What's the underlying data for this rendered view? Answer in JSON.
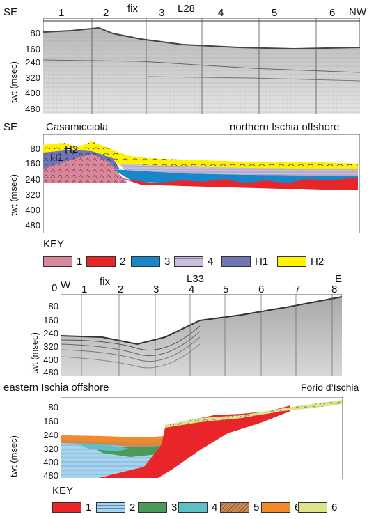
{
  "panel1": {
    "left_dir": "SE",
    "right_dir": "NW",
    "line_name": "L28",
    "fix_label": "fix",
    "fixes": [
      "1",
      "2",
      "3",
      "4",
      "5",
      "6"
    ],
    "ylabel": "twt (msec)",
    "yticks": [
      "80",
      "160",
      "240",
      "320",
      "400",
      "480"
    ]
  },
  "panel2": {
    "left_dir": "SE",
    "left_place": "Casamicciola",
    "right_place": "northern Ischia offshore",
    "ylabel": "twt (msec)",
    "yticks": [
      "80",
      "160",
      "240",
      "320",
      "400",
      "480"
    ],
    "unit_labels": [
      "H1",
      "H2"
    ]
  },
  "key1": {
    "title": "KEY",
    "items": [
      {
        "label": "1",
        "color": "#d9889c"
      },
      {
        "label": "2",
        "color": "#e8262a"
      },
      {
        "label": "3",
        "color": "#1787c9"
      },
      {
        "label": "4",
        "color": "#c9bedc"
      },
      {
        "label": "H1",
        "color": "#7276b4"
      },
      {
        "label": "H2",
        "color": "#fff200"
      }
    ]
  },
  "panel3": {
    "zero_label": "0",
    "left_dir": "W",
    "right_dir": "E",
    "line_name": "L33",
    "fix_label": "fix",
    "fixes": [
      "1",
      "2",
      "3",
      "4",
      "5",
      "6",
      "7",
      "8"
    ],
    "ylabel": "twt (msec)",
    "yticks": [
      "80",
      "160",
      "240",
      "320",
      "400",
      "480"
    ]
  },
  "panel4": {
    "left_place": "eastern Ischia offshore",
    "right_place": "Forio d’Ischia",
    "ylabel": "twt (msec)",
    "yticks": [
      "80",
      "160",
      "240",
      "320",
      "400",
      "480"
    ]
  },
  "key2": {
    "title": "KEY",
    "items": [
      {
        "label": "1",
        "color": "#e8262a"
      },
      {
        "label": "2",
        "color": "#a6d3ee"
      },
      {
        "label": "3",
        "color": "#4a9a5a"
      },
      {
        "label": "4",
        "color": "#5cc0c6"
      },
      {
        "label": "5",
        "color": "#c98a55"
      },
      {
        "label": "6",
        "color": "#f28a2a"
      },
      {
        "label": "6",
        "color": "#dde38c"
      }
    ]
  }
}
